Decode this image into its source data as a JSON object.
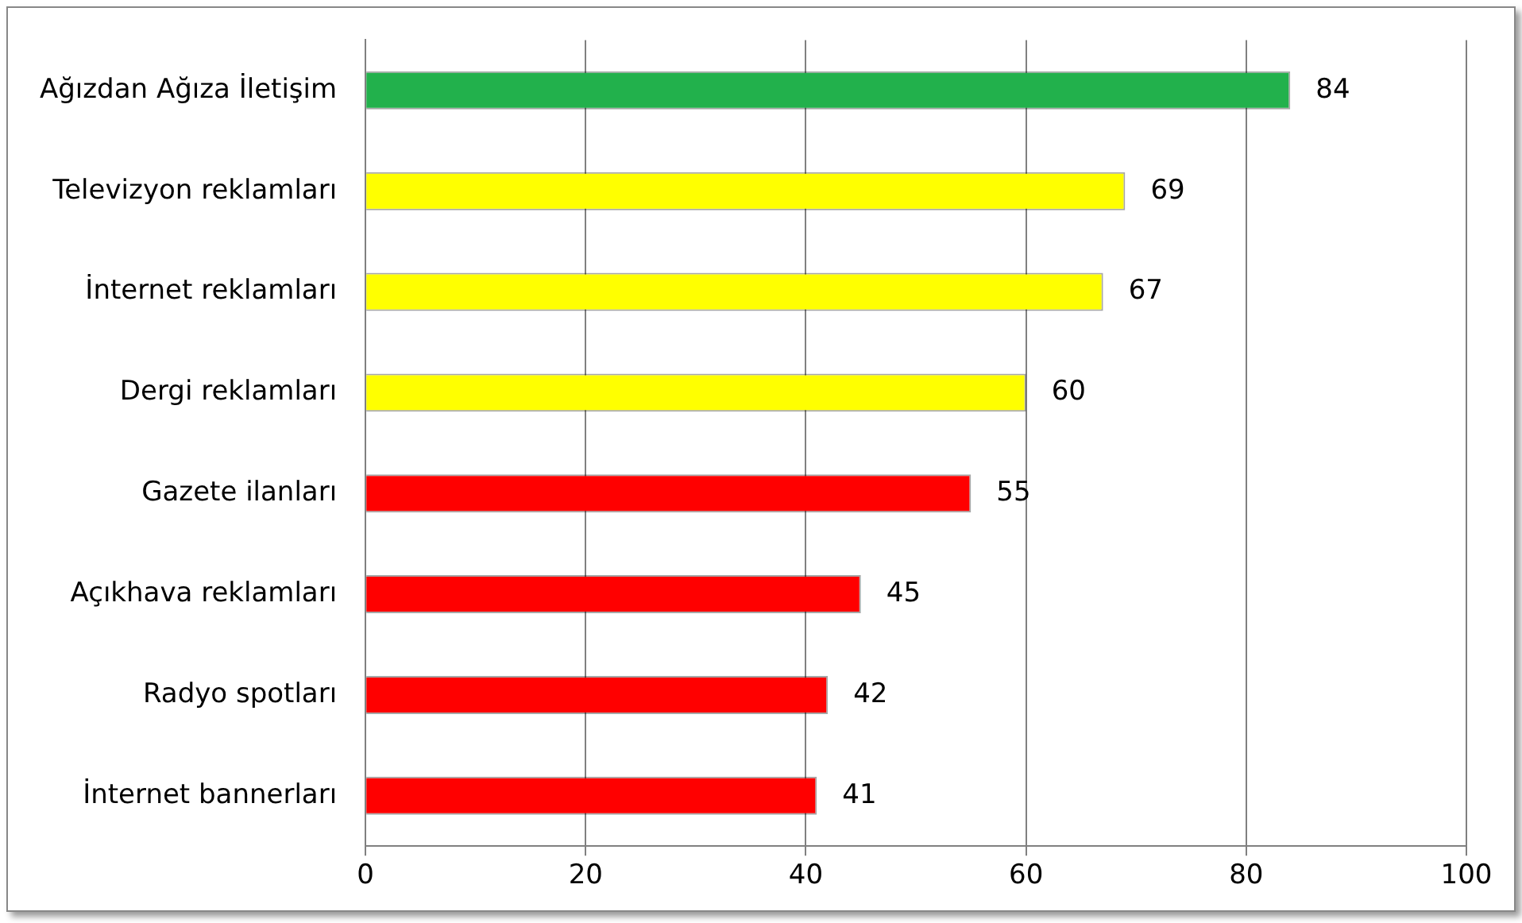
{
  "chart_data": {
    "type": "bar",
    "orientation": "horizontal",
    "categories": [
      "Ağızdan Ağıza İletişim",
      "Televizyon reklamları",
      "İnternet reklamları",
      "Dergi reklamları",
      "Gazete ilanları",
      "Açıkhava reklamları",
      "Radyo spotları",
      "İnternet bannerları"
    ],
    "values": [
      84,
      69,
      67,
      60,
      55,
      45,
      42,
      41
    ],
    "colors": [
      "#22b14c",
      "#ffff00",
      "#ffff00",
      "#ffff00",
      "#ff0000",
      "#ff0000",
      "#ff0000",
      "#ff0000"
    ],
    "xlim": [
      0,
      100
    ],
    "xticks": [
      0,
      20,
      40,
      60,
      80,
      100
    ],
    "grid": "x",
    "data_labels": true,
    "legend": false
  }
}
